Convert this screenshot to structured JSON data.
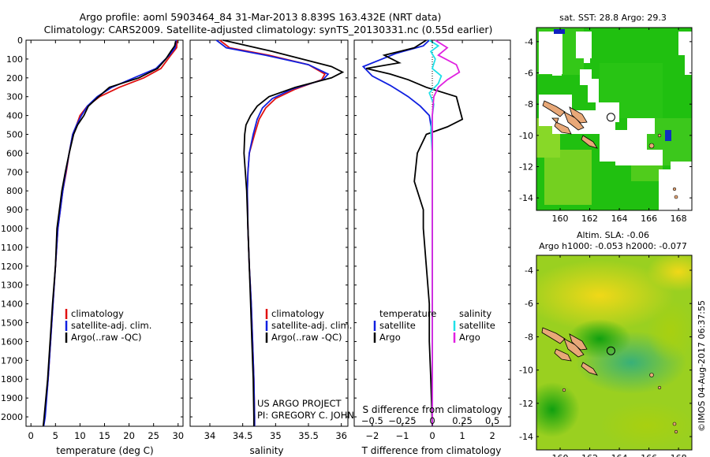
{
  "header": {
    "title1": "Argo profile: aoml 5903464_84 31-Mar-2013 8.839S 163.432E (NRT data)",
    "title2": "Climatology: CARS2009. Satellite-adjusted climatology: synTS_20130331.nc (0.55d earlier)"
  },
  "colors": {
    "clim": "#e01010",
    "sat": "#1020e0",
    "argo": "#000000",
    "sal_sat": "#20e0e8",
    "sal_argo": "#e020e0",
    "land": "#e8a878",
    "sst_base": "#20c010",
    "sla_base": "#9ad020"
  },
  "chart_data": [
    {
      "id": "temperature",
      "type": "line",
      "xlabel": "temperature (deg C)",
      "ylabel": "",
      "xlim": [
        -1,
        31
      ],
      "ylim": [
        2050,
        0
      ],
      "xticks": [
        0,
        5,
        10,
        15,
        20,
        25,
        30
      ],
      "xtick_labels": [
        "0",
        "5",
        "10",
        "15",
        "20",
        "25",
        "30"
      ],
      "yticks": [
        0,
        100,
        200,
        300,
        400,
        500,
        600,
        700,
        800,
        900,
        1000,
        1100,
        1200,
        1300,
        1400,
        1500,
        1600,
        1700,
        1800,
        1900,
        2000
      ],
      "ytick_labels": [
        "0",
        "100",
        "200",
        "300",
        "400",
        "500",
        "600",
        "700",
        "800",
        "900",
        "1000",
        "1100",
        "1200",
        "1300",
        "1400",
        "1500",
        "1600",
        "1700",
        "1800",
        "1900",
        "2000"
      ],
      "legend": [
        "climatology",
        "satellite-adj. clim.",
        "Argo(..raw -QC)"
      ],
      "series": [
        {
          "name": "climatology",
          "color": "#e01010",
          "points": [
            [
              29.8,
              0
            ],
            [
              29.7,
              40
            ],
            [
              28.5,
              80
            ],
            [
              26.5,
              150
            ],
            [
              23,
              200
            ],
            [
              18,
              250
            ],
            [
              14,
              300
            ],
            [
              11.5,
              350
            ],
            [
              10,
              400
            ],
            [
              9.3,
              450
            ],
            [
              8.5,
              500
            ],
            [
              7.8,
              600
            ],
            [
              7.2,
              700
            ],
            [
              6.5,
              800
            ],
            [
              6,
              900
            ],
            [
              5.5,
              1000
            ],
            [
              5,
              1200
            ],
            [
              4.5,
              1400
            ],
            [
              4,
              1600
            ],
            [
              3.5,
              1800
            ],
            [
              2.8,
              2000
            ],
            [
              2.5,
              2050
            ]
          ]
        },
        {
          "name": "satellite-adj. clim.",
          "color": "#1020e0",
          "points": [
            [
              29.6,
              0
            ],
            [
              29.4,
              40
            ],
            [
              28.2,
              80
            ],
            [
              25.5,
              150
            ],
            [
              21,
              200
            ],
            [
              16.5,
              250
            ],
            [
              13.5,
              300
            ],
            [
              11.5,
              350
            ],
            [
              10.3,
              400
            ],
            [
              9.3,
              450
            ],
            [
              8.5,
              500
            ],
            [
              7.8,
              600
            ],
            [
              7.1,
              700
            ],
            [
              6.5,
              800
            ],
            [
              6,
              900
            ],
            [
              5.5,
              1000
            ],
            [
              5,
              1200
            ],
            [
              4.5,
              1400
            ],
            [
              4,
              1600
            ],
            [
              3.5,
              1800
            ],
            [
              2.9,
              2000
            ],
            [
              2.6,
              2050
            ]
          ]
        },
        {
          "name": "Argo(..raw -QC)",
          "color": "#000000",
          "points": [
            [
              29.5,
              5
            ],
            [
              29.3,
              30
            ],
            [
              28.5,
              60
            ],
            [
              27.5,
              100
            ],
            [
              25.8,
              150
            ],
            [
              22,
              200
            ],
            [
              16,
              250
            ],
            [
              13.8,
              300
            ],
            [
              11.7,
              350
            ],
            [
              10.8,
              400
            ],
            [
              9.5,
              450
            ],
            [
              8.7,
              500
            ],
            [
              7.8,
              600
            ],
            [
              7,
              700
            ],
            [
              6.3,
              800
            ],
            [
              5.8,
              900
            ],
            [
              5.3,
              1000
            ],
            [
              5,
              1200
            ],
            [
              4.4,
              1400
            ],
            [
              3.9,
              1600
            ],
            [
              3.4,
              1800
            ],
            [
              2.7,
              2000
            ],
            [
              2.5,
              2050
            ]
          ]
        }
      ]
    },
    {
      "id": "salinity",
      "type": "line",
      "xlabel": "salinity",
      "xlim": [
        33.7,
        36.1
      ],
      "ylim": [
        2050,
        0
      ],
      "xticks": [
        34,
        34.5,
        35,
        35.5,
        36
      ],
      "xtick_labels": [
        "34",
        "34.5",
        "35",
        "35.5",
        "36"
      ],
      "legend": [
        "climatology",
        "satellite-adj. clim.",
        "Argo(..raw -QC)"
      ],
      "credit1": "US ARGO PROJECT",
      "credit2": "PI: GREGORY C. JOHNSON",
      "series": [
        {
          "name": "climatology",
          "color": "#e01010",
          "points": [
            [
              34.15,
              0
            ],
            [
              34.3,
              40
            ],
            [
              34.9,
              80
            ],
            [
              35.5,
              130
            ],
            [
              35.75,
              180
            ],
            [
              35.7,
              210
            ],
            [
              35.3,
              260
            ],
            [
              35.0,
              310
            ],
            [
              34.85,
              360
            ],
            [
              34.75,
              420
            ],
            [
              34.68,
              500
            ],
            [
              34.6,
              600
            ],
            [
              34.58,
              700
            ],
            [
              34.57,
              800
            ],
            [
              34.58,
              1000
            ],
            [
              34.6,
              1200
            ],
            [
              34.63,
              1400
            ],
            [
              34.65,
              1600
            ],
            [
              34.67,
              1800
            ],
            [
              34.68,
              2000
            ],
            [
              34.68,
              2050
            ]
          ]
        },
        {
          "name": "satellite-adj. clim.",
          "color": "#1020e0",
          "points": [
            [
              34.1,
              0
            ],
            [
              34.25,
              40
            ],
            [
              34.85,
              80
            ],
            [
              35.5,
              130
            ],
            [
              35.8,
              180
            ],
            [
              35.72,
              210
            ],
            [
              35.25,
              260
            ],
            [
              34.95,
              310
            ],
            [
              34.8,
              360
            ],
            [
              34.72,
              420
            ],
            [
              34.66,
              500
            ],
            [
              34.6,
              600
            ],
            [
              34.58,
              700
            ],
            [
              34.57,
              800
            ],
            [
              34.58,
              1000
            ],
            [
              34.6,
              1200
            ],
            [
              34.63,
              1400
            ],
            [
              34.65,
              1600
            ],
            [
              34.67,
              1800
            ],
            [
              34.68,
              2000
            ],
            [
              34.68,
              2050
            ]
          ]
        },
        {
          "name": "Argo(..raw -QC)",
          "color": "#000000",
          "points": [
            [
              34.2,
              0
            ],
            [
              34.45,
              20
            ],
            [
              34.95,
              60
            ],
            [
              35.4,
              100
            ],
            [
              35.85,
              140
            ],
            [
              36.02,
              170
            ],
            [
              35.85,
              200
            ],
            [
              35.3,
              250
            ],
            [
              34.9,
              300
            ],
            [
              34.72,
              350
            ],
            [
              34.62,
              400
            ],
            [
              34.55,
              450
            ],
            [
              34.53,
              500
            ],
            [
              34.52,
              600
            ],
            [
              34.54,
              700
            ],
            [
              34.56,
              800
            ],
            [
              34.58,
              1000
            ],
            [
              34.6,
              1200
            ],
            [
              34.62,
              1400
            ],
            [
              34.64,
              1600
            ],
            [
              34.66,
              1800
            ],
            [
              34.67,
              2000
            ],
            [
              34.67,
              2050
            ]
          ]
        }
      ]
    },
    {
      "id": "difference",
      "type": "line",
      "xlabel": "T difference from climatology",
      "xlabel_top": "S difference from climatology",
      "xlim": [
        -2.6,
        2.6
      ],
      "ylim": [
        2050,
        0
      ],
      "xticks": [
        -2,
        -1,
        0,
        1,
        2
      ],
      "xtick_labels": [
        "−2",
        "−1",
        "0",
        "1",
        "2"
      ],
      "sticks": [
        -0.5,
        -0.25,
        0,
        0.25,
        0.5
      ],
      "stick_labels": [
        "−0.5",
        "−0.25",
        "0",
        "0.25",
        "0.5"
      ],
      "legend_temp_title": "temperature",
      "legend_sal_title": "salinity",
      "legend_temp": [
        "satellite",
        "Argo"
      ],
      "legend_sal": [
        "satellite",
        "Argo"
      ],
      "series": [
        {
          "name": "T satellite",
          "color": "#1020e0",
          "points": [
            [
              -0.1,
              0
            ],
            [
              -0.3,
              30
            ],
            [
              -1.2,
              70
            ],
            [
              -2.3,
              140
            ],
            [
              -2.0,
              190
            ],
            [
              -1.4,
              240
            ],
            [
              -0.8,
              300
            ],
            [
              -0.4,
              350
            ],
            [
              -0.1,
              400
            ],
            [
              0,
              500
            ],
            [
              0,
              800
            ],
            [
              0,
              1200
            ],
            [
              0,
              1600
            ],
            [
              0,
              2050
            ]
          ]
        },
        {
          "name": "T Argo",
          "color": "#000000",
          "points": [
            [
              -0.2,
              0
            ],
            [
              -0.6,
              40
            ],
            [
              -1.6,
              80
            ],
            [
              -1.1,
              120
            ],
            [
              -2.2,
              150
            ],
            [
              -1.4,
              180
            ],
            [
              -0.8,
              210
            ],
            [
              -0.2,
              250
            ],
            [
              0.8,
              300
            ],
            [
              1.0,
              420
            ],
            [
              0.5,
              460
            ],
            [
              -0.2,
              500
            ],
            [
              -0.5,
              600
            ],
            [
              -0.6,
              750
            ],
            [
              -0.3,
              900
            ],
            [
              -0.3,
              1000
            ],
            [
              -0.2,
              1200
            ],
            [
              -0.1,
              1400
            ],
            [
              -0.1,
              1600
            ],
            [
              -0.05,
              1800
            ],
            [
              0,
              2050
            ]
          ]
        },
        {
          "name": "S satellite",
          "color": "#20e0e8",
          "points": [
            [
              -0.1,
              0
            ],
            [
              0.2,
              30
            ],
            [
              -0.05,
              60
            ],
            [
              0.1,
              100
            ],
            [
              0,
              150
            ],
            [
              0.3,
              190
            ],
            [
              0.2,
              230
            ],
            [
              -0.1,
              280
            ],
            [
              0.05,
              340
            ],
            [
              0,
              400
            ],
            [
              -0.05,
              480
            ],
            [
              0,
              600
            ],
            [
              0,
              1000
            ],
            [
              0,
              1400
            ],
            [
              0,
              2050
            ]
          ]
        },
        {
          "name": "S Argo",
          "color": "#e020e0",
          "points": [
            [
              0.1,
              0
            ],
            [
              0.5,
              40
            ],
            [
              0.2,
              80
            ],
            [
              0.8,
              130
            ],
            [
              0.9,
              170
            ],
            [
              0.5,
              210
            ],
            [
              0.2,
              250
            ],
            [
              0.05,
              300
            ],
            [
              0,
              400
            ],
            [
              0,
              600
            ],
            [
              0,
              1000
            ],
            [
              0,
              1400
            ],
            [
              0,
              2050
            ]
          ]
        }
      ]
    },
    {
      "id": "sst_map",
      "type": "heatmap",
      "title": "sat. SST: 28.8  Argo: 29.3",
      "xlim": [
        158.4,
        168.9
      ],
      "ylim": [
        -14.8,
        -3.1
      ],
      "xticks": [
        160,
        162,
        164,
        166,
        168
      ],
      "xtick_labels": [
        "160",
        "162",
        "164",
        "166",
        "168"
      ],
      "yticks": [
        -4,
        -6,
        -8,
        -10,
        -12,
        -14
      ],
      "ytick_labels": [
        "-4",
        "-6",
        "-8",
        "-10",
        "-12",
        "-14"
      ],
      "argo_position": [
        163.432,
        -8.839
      ]
    },
    {
      "id": "sla_map",
      "type": "heatmap",
      "title1": "Altim. SLA: -0.06",
      "title2": "Argo h1000: -0.053 h2000: -0.077",
      "xlim": [
        158.4,
        168.9
      ],
      "ylim": [
        -14.8,
        -3.1
      ],
      "xticks": [
        160,
        162,
        164,
        166,
        168
      ],
      "xtick_labels": [
        "160",
        "162",
        "164",
        "166",
        "168"
      ],
      "yticks": [
        -4,
        -6,
        -8,
        -10,
        -12,
        -14
      ],
      "ytick_labels": [
        "-4",
        "-6",
        "-8",
        "-10",
        "-12",
        "-14"
      ],
      "argo_position": [
        163.432,
        -8.839
      ]
    }
  ],
  "footer": {
    "stamp": "©IMOS 04-Aug-2017 06:37:55"
  }
}
